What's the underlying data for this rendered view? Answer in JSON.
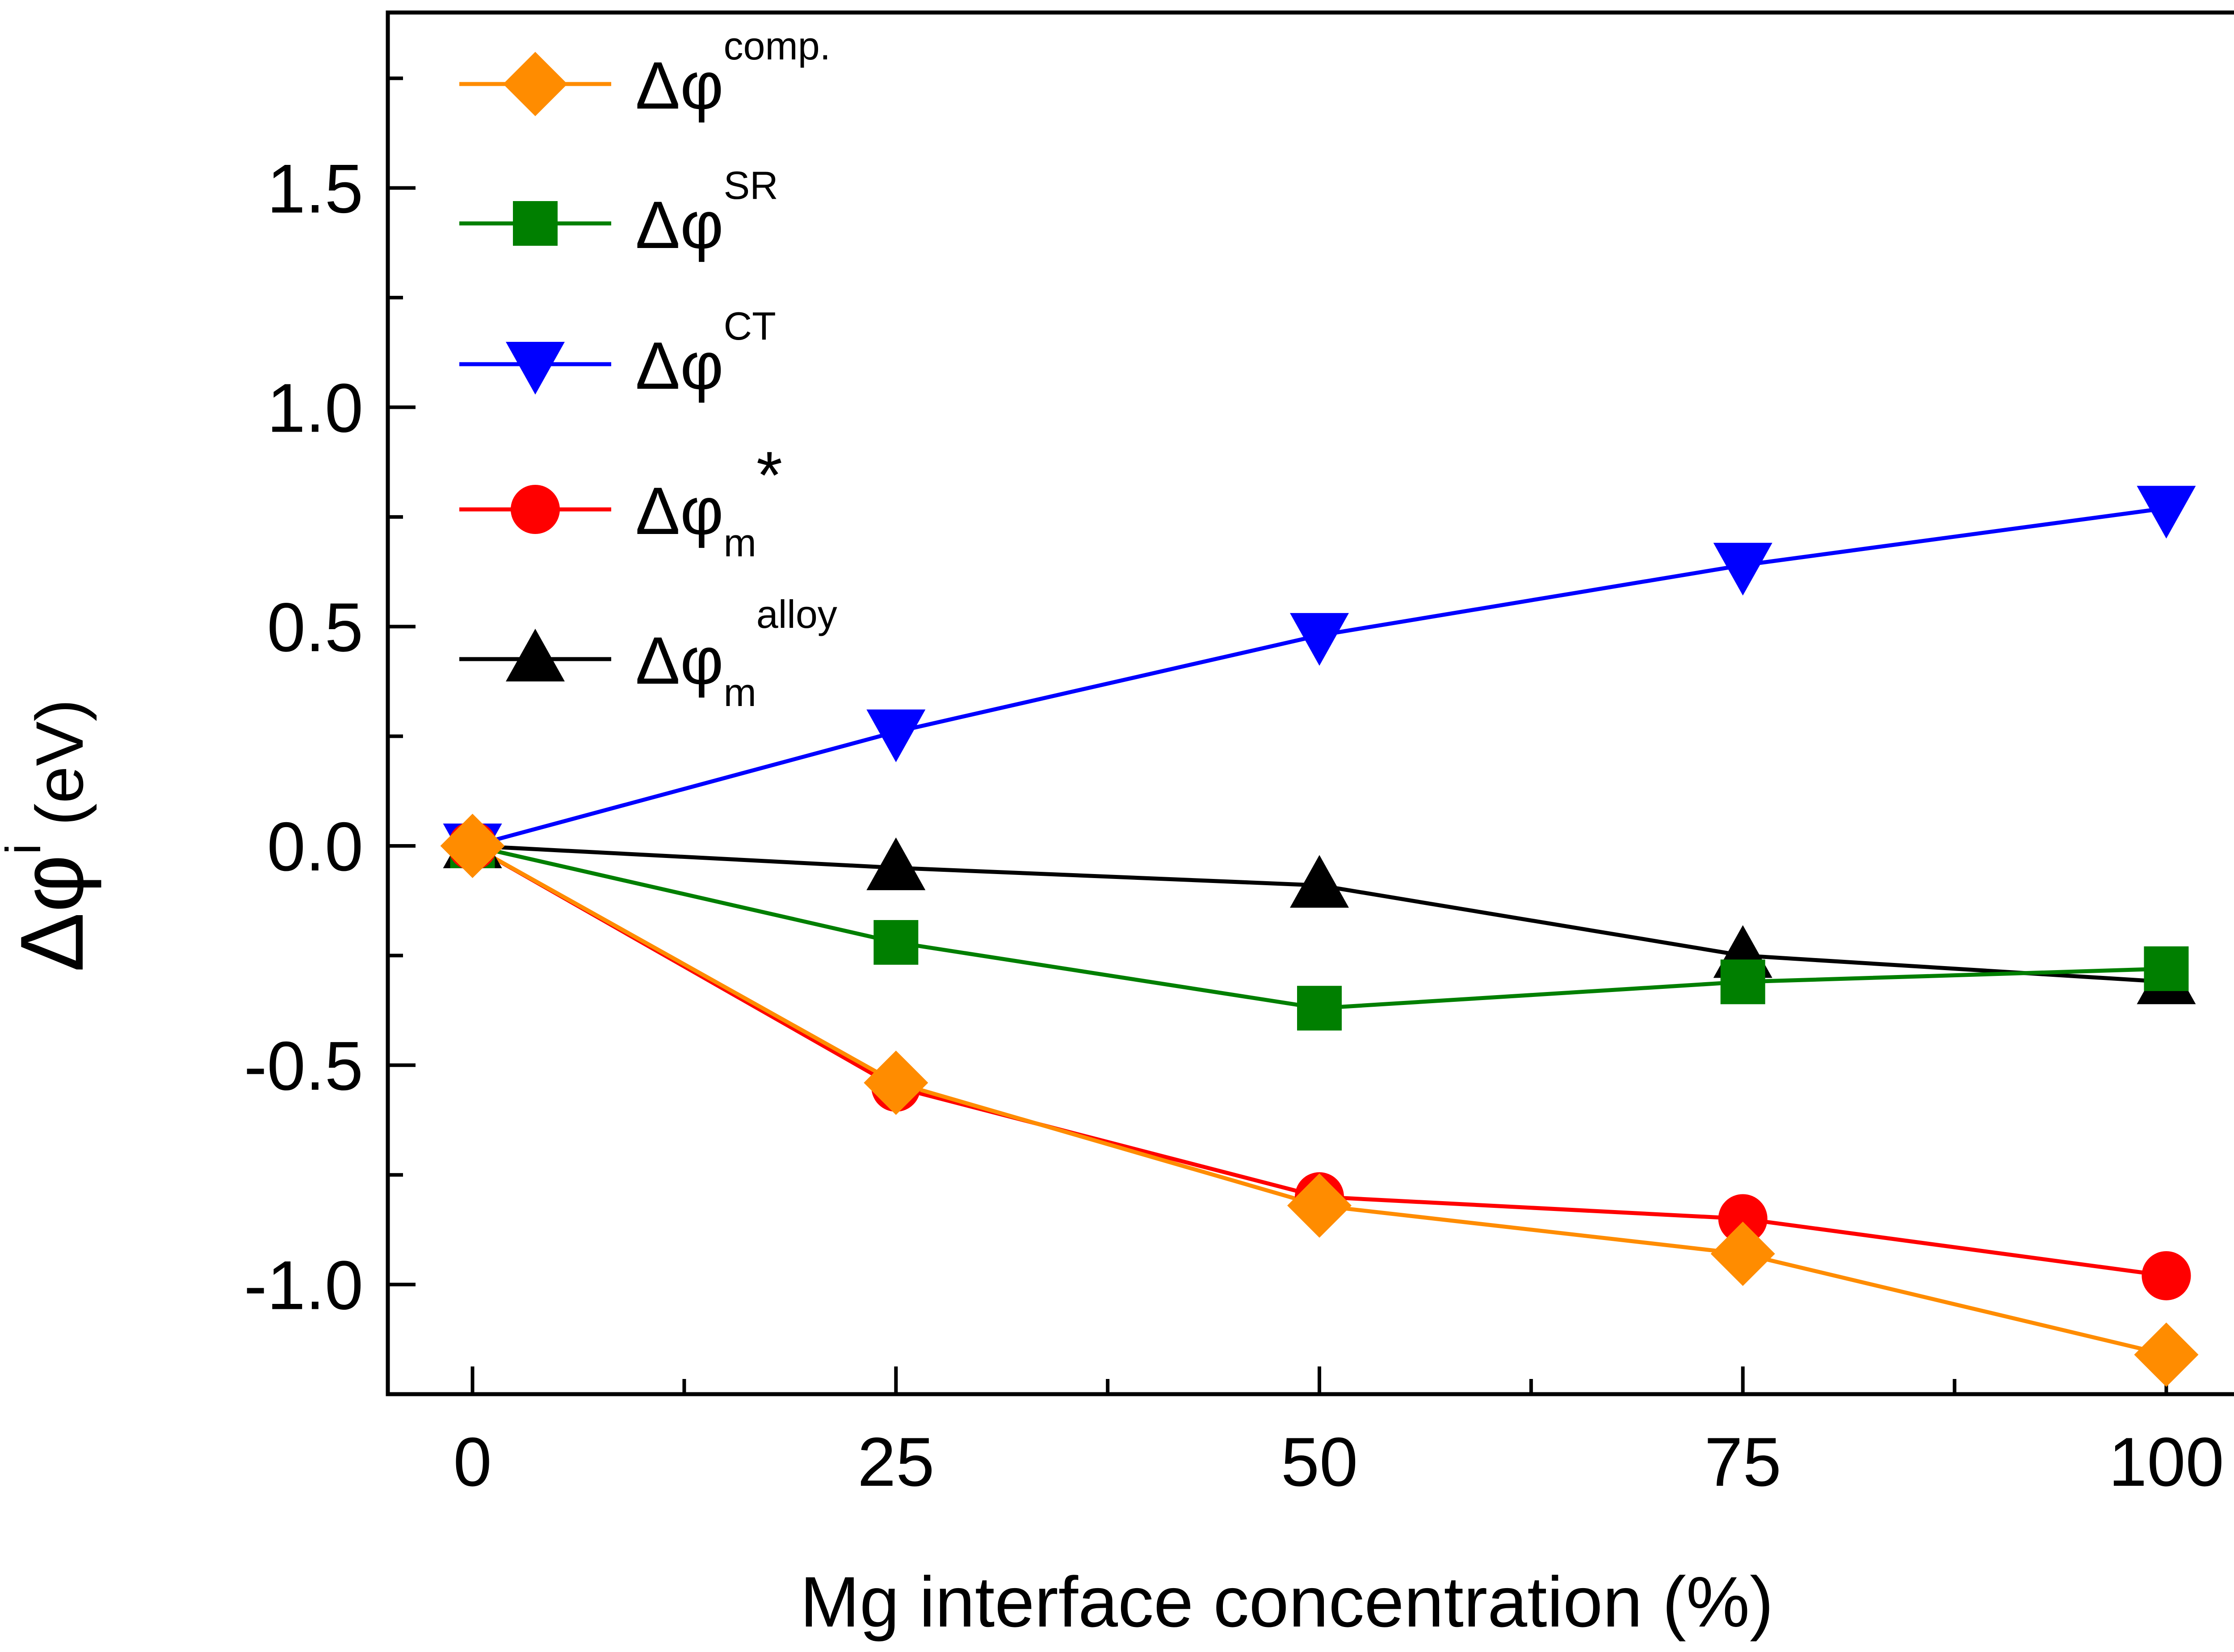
{
  "chart_data": {
    "type": "line",
    "x": [
      0,
      25,
      50,
      75,
      100
    ],
    "xlabel": "Mg interface concentration (%)",
    "ylabel": {
      "main": "Δφ",
      "sup": "i",
      "unit": "(eV)"
    },
    "xlim": [
      -5,
      105
    ],
    "ylim": [
      -1.25,
      1.9
    ],
    "xticks": [
      0,
      25,
      50,
      75,
      100
    ],
    "xtick_labels": [
      "0",
      "25",
      "50",
      "75",
      "100"
    ],
    "yticks": [
      -1.0,
      -0.5,
      0.0,
      0.5,
      1.0,
      1.5
    ],
    "ytick_labels": [
      "-1.0",
      "-0.5",
      "0.0",
      "0.5",
      "1.0",
      "1.5"
    ],
    "legend_position": "top-left",
    "grid": false,
    "series": [
      {
        "name": "Δφ comp.",
        "base": "Δφ",
        "sup": "comp.",
        "sub": "",
        "color": "#ff8c00",
        "marker": "diamond",
        "values": [
          0.0,
          -0.54,
          -0.82,
          -0.93,
          -1.16
        ]
      },
      {
        "name": "Δφ SR",
        "base": "Δφ",
        "sup": "SR",
        "sub": "",
        "color": "#007f00",
        "marker": "square",
        "values": [
          0.0,
          -0.22,
          -0.37,
          -0.31,
          -0.28
        ]
      },
      {
        "name": "Δφ CT",
        "base": "Δφ",
        "sup": "CT",
        "sub": "",
        "color": "#0000ff",
        "marker": "triangle-down",
        "values": [
          0.0,
          0.26,
          0.48,
          0.64,
          0.77
        ]
      },
      {
        "name": "Δφ m *",
        "base": "Δφ",
        "sup": "*",
        "sub": "m",
        "color": "#ff0000",
        "marker": "circle",
        "values": [
          0.0,
          -0.55,
          -0.8,
          -0.85,
          -0.98
        ]
      },
      {
        "name": "Δφ m alloy",
        "base": "Δφ",
        "sup": "alloy",
        "sub": "m",
        "color": "#000000",
        "marker": "triangle-up",
        "values": [
          0.0,
          -0.05,
          -0.09,
          -0.25,
          -0.31
        ]
      }
    ],
    "draw_order": [
      4,
      1,
      2,
      3,
      0
    ]
  }
}
